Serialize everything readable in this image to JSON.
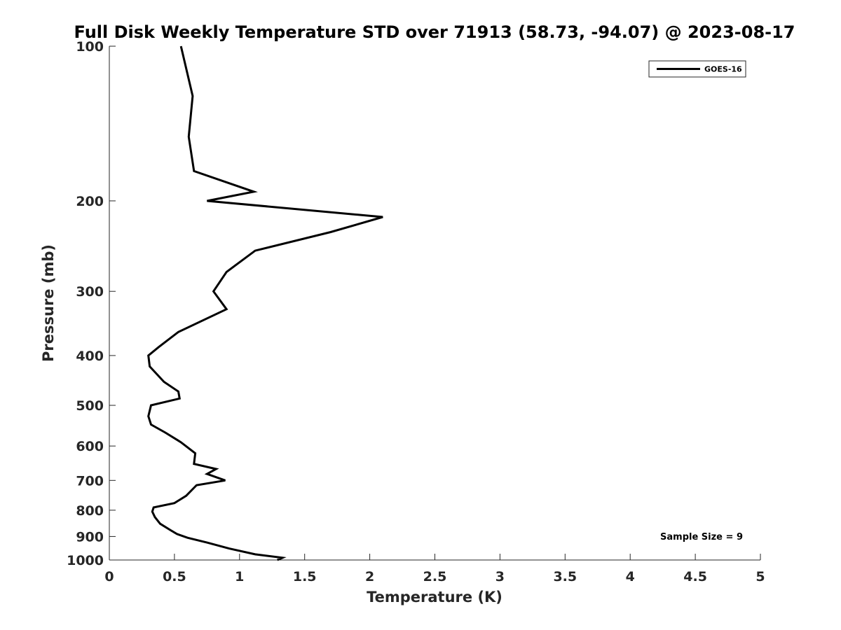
{
  "chart_data": {
    "type": "line",
    "title": "Full Disk Weekly Temperature STD over 71913 (58.73, -94.07) @ 2023-08-17",
    "xlabel": "Temperature (K)",
    "ylabel": "Pressure (mb)",
    "xlim": [
      0,
      5
    ],
    "ylim": [
      1000,
      100
    ],
    "yscale": "log",
    "xticks": [
      0,
      0.5,
      1,
      1.5,
      2,
      2.5,
      3,
      3.5,
      4,
      4.5,
      5
    ],
    "xtick_labels": [
      "0",
      "0.5",
      "1",
      "1.5",
      "2",
      "2.5",
      "3",
      "3.5",
      "4",
      "4.5",
      "5"
    ],
    "yticks": [
      100,
      200,
      300,
      400,
      500,
      600,
      700,
      800,
      900,
      1000
    ],
    "ytick_labels": [
      "100",
      "200",
      "300",
      "400",
      "500",
      "600",
      "700",
      "800",
      "900",
      "1000"
    ],
    "grid": false,
    "legend_position": "top-right",
    "series": [
      {
        "name": "GOES-16",
        "color": "#000000",
        "points": [
          [
            0.55,
            100
          ],
          [
            0.64,
            125
          ],
          [
            0.61,
            150
          ],
          [
            0.65,
            175
          ],
          [
            1.11,
            192
          ],
          [
            0.75,
            200
          ],
          [
            2.1,
            215
          ],
          [
            1.7,
            230
          ],
          [
            1.12,
            250
          ],
          [
            0.9,
            275
          ],
          [
            0.8,
            300
          ],
          [
            0.9,
            325
          ],
          [
            0.53,
            360
          ],
          [
            0.38,
            385
          ],
          [
            0.3,
            400
          ],
          [
            0.31,
            420
          ],
          [
            0.42,
            450
          ],
          [
            0.53,
            470
          ],
          [
            0.54,
            485
          ],
          [
            0.32,
            500
          ],
          [
            0.3,
            525
          ],
          [
            0.32,
            545
          ],
          [
            0.43,
            565
          ],
          [
            0.55,
            590
          ],
          [
            0.66,
            620
          ],
          [
            0.65,
            650
          ],
          [
            0.82,
            665
          ],
          [
            0.75,
            680
          ],
          [
            0.89,
            700
          ],
          [
            0.67,
            715
          ],
          [
            0.59,
            750
          ],
          [
            0.5,
            775
          ],
          [
            0.34,
            790
          ],
          [
            0.33,
            805
          ],
          [
            0.35,
            825
          ],
          [
            0.39,
            850
          ],
          [
            0.47,
            875
          ],
          [
            0.52,
            890
          ],
          [
            0.6,
            905
          ],
          [
            0.75,
            925
          ],
          [
            0.92,
            950
          ],
          [
            1.12,
            975
          ],
          [
            1.33,
            990
          ],
          [
            1.29,
            1000
          ]
        ]
      }
    ],
    "annotations": [
      "Sample Size = 9"
    ]
  }
}
